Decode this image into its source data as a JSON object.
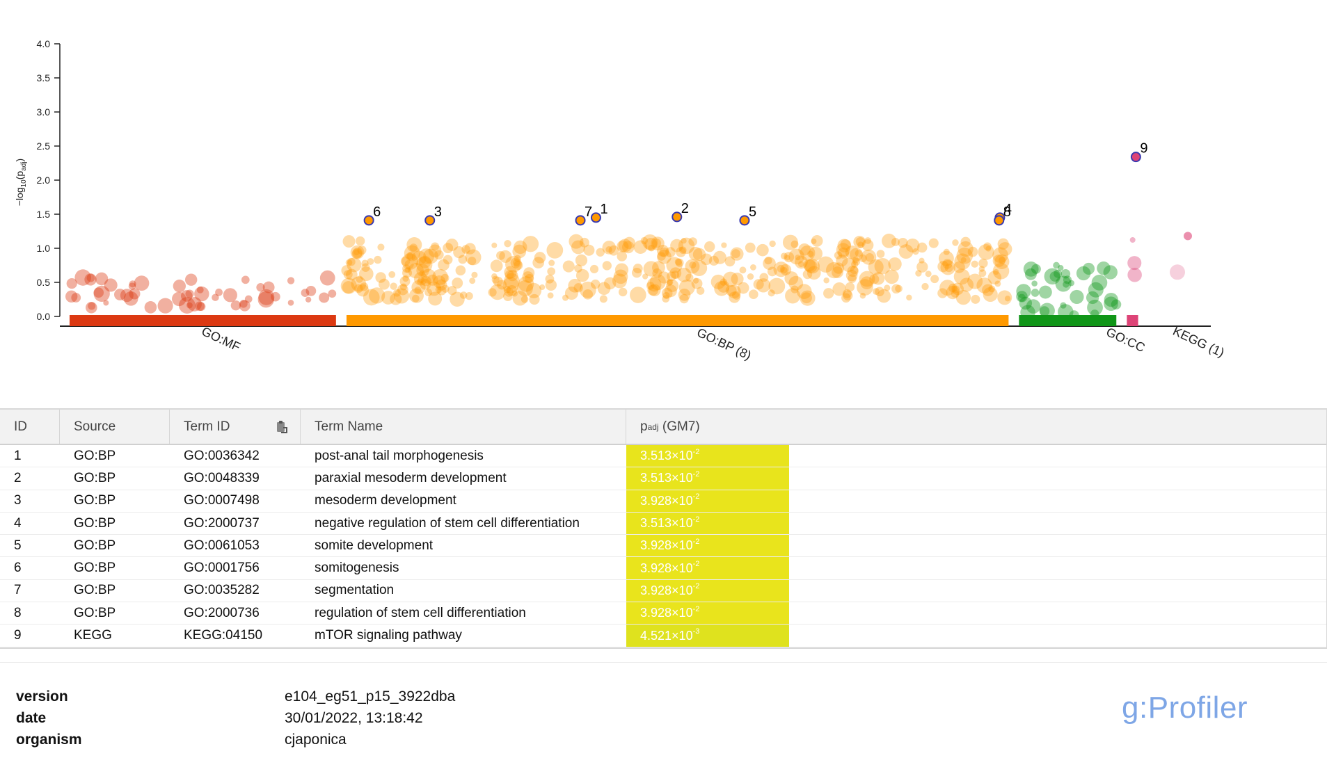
{
  "chart_data": {
    "type": "scatter",
    "ylabel": "-log10(padj)",
    "ylim": [
      0,
      4.0
    ],
    "y_ticks": [
      "0.0",
      "0.5",
      "1.0",
      "1.5",
      "2.0",
      "2.5",
      "3.0",
      "3.5",
      "4.0"
    ],
    "sources": [
      {
        "name": "GO:MF",
        "label": "GO:MF",
        "color": "#dc3912",
        "range": [
          0,
          0.2356
        ]
      },
      {
        "name": "GO:BP",
        "label": "GO:BP (8)",
        "color": "#ff9900",
        "range": [
          0.2449,
          0.8304
        ]
      },
      {
        "name": "GO:CC",
        "label": "GO:CC",
        "color": "#109618",
        "range": [
          0.8396,
          0.9257
        ]
      },
      {
        "name": "KEGG",
        "label": "KEGG (1)",
        "color": "#dd4477",
        "range": [
          0.935,
          0.945
        ]
      }
    ],
    "highlighted": [
      {
        "id": "1",
        "source": "GO:BP",
        "x": 0.4655,
        "y": 1.45
      },
      {
        "id": "2",
        "source": "GO:BP",
        "x": 0.5371,
        "y": 1.46
      },
      {
        "id": "3",
        "source": "GO:BP",
        "x": 0.3186,
        "y": 1.41
      },
      {
        "id": "4",
        "source": "GO:BP",
        "x": 0.8227,
        "y": 1.45
      },
      {
        "id": "5",
        "source": "GO:BP",
        "x": 0.5969,
        "y": 1.41
      },
      {
        "id": "6",
        "source": "GO:BP",
        "x": 0.2647,
        "y": 1.41
      },
      {
        "id": "7",
        "source": "GO:BP",
        "x": 0.4517,
        "y": 1.41
      },
      {
        "id": "8",
        "source": "GO:BP",
        "x": 0.822,
        "y": 1.41
      },
      {
        "id": "9",
        "source": "KEGG",
        "x": 0.943,
        "y": 2.34
      }
    ]
  },
  "table": {
    "headers": {
      "id": "ID",
      "source": "Source",
      "term_id": "Term ID",
      "term_name": "Term Name",
      "padj_main": "p",
      "padj_sub": "adj",
      "padj_suffix": " (GM7)"
    },
    "rows": [
      {
        "id": "1",
        "source": "GO:BP",
        "term_id": "GO:0036342",
        "term_name": "post-anal tail morphogenesis",
        "padj_mant": "3.513×10",
        "padj_exp": "-2",
        "color": "#e8e41c"
      },
      {
        "id": "2",
        "source": "GO:BP",
        "term_id": "GO:0048339",
        "term_name": "paraxial mesoderm development",
        "padj_mant": "3.513×10",
        "padj_exp": "-2",
        "color": "#e8e41c"
      },
      {
        "id": "3",
        "source": "GO:BP",
        "term_id": "GO:0007498",
        "term_name": "mesoderm development",
        "padj_mant": "3.928×10",
        "padj_exp": "-2",
        "color": "#e9e41c"
      },
      {
        "id": "4",
        "source": "GO:BP",
        "term_id": "GO:2000737",
        "term_name": "negative regulation of stem cell differentiation",
        "padj_mant": "3.513×10",
        "padj_exp": "-2",
        "color": "#e8e41c"
      },
      {
        "id": "5",
        "source": "GO:BP",
        "term_id": "GO:0061053",
        "term_name": "somite development",
        "padj_mant": "3.928×10",
        "padj_exp": "-2",
        "color": "#e9e41c"
      },
      {
        "id": "6",
        "source": "GO:BP",
        "term_id": "GO:0001756",
        "term_name": "somitogenesis",
        "padj_mant": "3.928×10",
        "padj_exp": "-2",
        "color": "#e9e41c"
      },
      {
        "id": "7",
        "source": "GO:BP",
        "term_id": "GO:0035282",
        "term_name": "segmentation",
        "padj_mant": "3.928×10",
        "padj_exp": "-2",
        "color": "#e9e41c"
      },
      {
        "id": "8",
        "source": "GO:BP",
        "term_id": "GO:2000736",
        "term_name": "regulation of stem cell differentiation",
        "padj_mant": "3.928×10",
        "padj_exp": "-2",
        "color": "#e9e41c"
      },
      {
        "id": "9",
        "source": "KEGG",
        "term_id": "KEGG:04150",
        "term_name": "mTOR signaling pathway",
        "padj_mant": "4.521×10",
        "padj_exp": "-3",
        "color": "#dfe21e"
      }
    ]
  },
  "footer": {
    "version_label": "version",
    "version_value": "e104_eg51_p15_3922dba",
    "date_label": "date",
    "date_value": "30/01/2022, 13:18:42",
    "organism_label": "organism",
    "organism_value": "cjaponica",
    "brand": "g:Profiler"
  },
  "icons": {
    "sort": "clipboard-sort-icon"
  }
}
